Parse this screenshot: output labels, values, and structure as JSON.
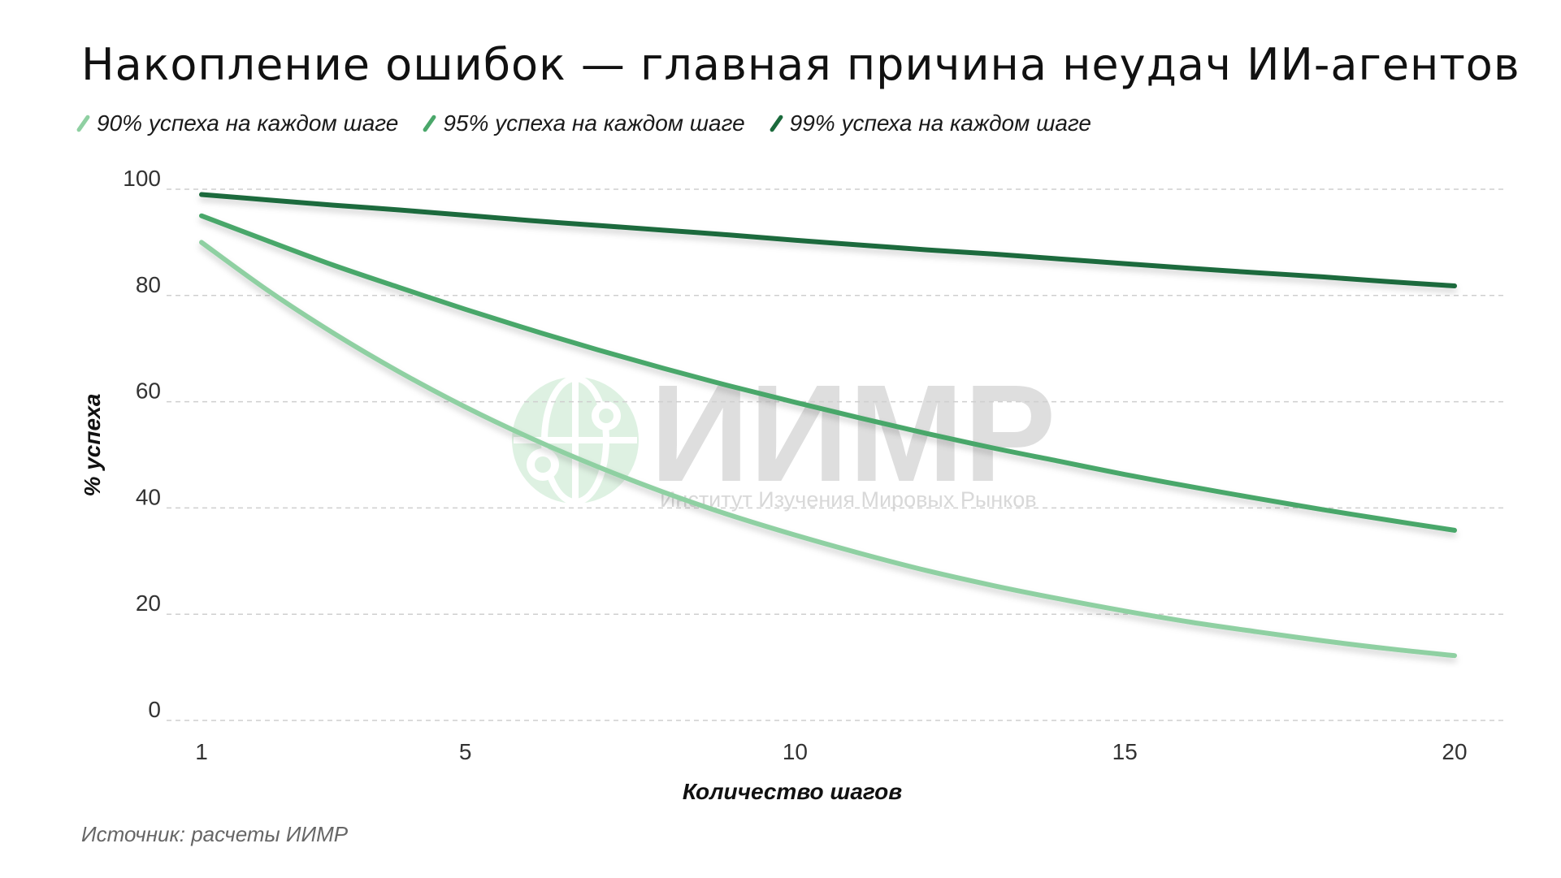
{
  "title": "Накопление ошибок — главная причина неудач ИИ-агентов",
  "source": "Источник: расчеты ИИМР",
  "watermark": {
    "logo_text": "ИИМР",
    "subtitle": "Институт Изучения Мировых Рынков",
    "icon": "globe-network-icon"
  },
  "colors": {
    "series_90": "#8fd0a2",
    "series_95": "#4aa76a",
    "series_99": "#1b6a3c",
    "grid": "#cfcfcf"
  },
  "chart_data": {
    "type": "line",
    "xlabel": "Количество шагов",
    "ylabel": "% успеха",
    "xlim": [
      1,
      20
    ],
    "ylim": [
      0,
      100
    ],
    "x_ticks": [
      1,
      5,
      10,
      15,
      20
    ],
    "y_ticks": [
      0,
      20,
      40,
      60,
      80,
      100
    ],
    "grid": true,
    "legend_position": "top-left",
    "x": [
      1,
      2,
      3,
      4,
      5,
      6,
      7,
      8,
      9,
      10,
      11,
      12,
      13,
      14,
      15,
      16,
      17,
      18,
      19,
      20
    ],
    "series": [
      {
        "name": "90% успеха на каждом шаге",
        "color": "#8fd0a2",
        "values": [
          90.0,
          81.0,
          72.9,
          65.6,
          59.0,
          53.1,
          47.8,
          43.0,
          38.7,
          34.9,
          31.4,
          28.2,
          25.4,
          22.9,
          20.6,
          18.5,
          16.7,
          15.0,
          13.5,
          12.2
        ]
      },
      {
        "name": "95% успеха на каждом шаге",
        "color": "#4aa76a",
        "values": [
          95.0,
          90.3,
          85.7,
          81.5,
          77.4,
          73.5,
          69.8,
          66.3,
          63.0,
          59.9,
          56.9,
          54.0,
          51.3,
          48.8,
          46.3,
          44.0,
          41.8,
          39.7,
          37.7,
          35.8
        ]
      },
      {
        "name": "99% успеха на каждом шаге",
        "color": "#1b6a3c",
        "values": [
          99.0,
          98.0,
          97.0,
          96.1,
          95.1,
          94.1,
          93.2,
          92.3,
          91.4,
          90.4,
          89.5,
          88.6,
          87.8,
          86.9,
          86.0,
          85.1,
          84.3,
          83.5,
          82.6,
          81.8
        ]
      }
    ]
  }
}
